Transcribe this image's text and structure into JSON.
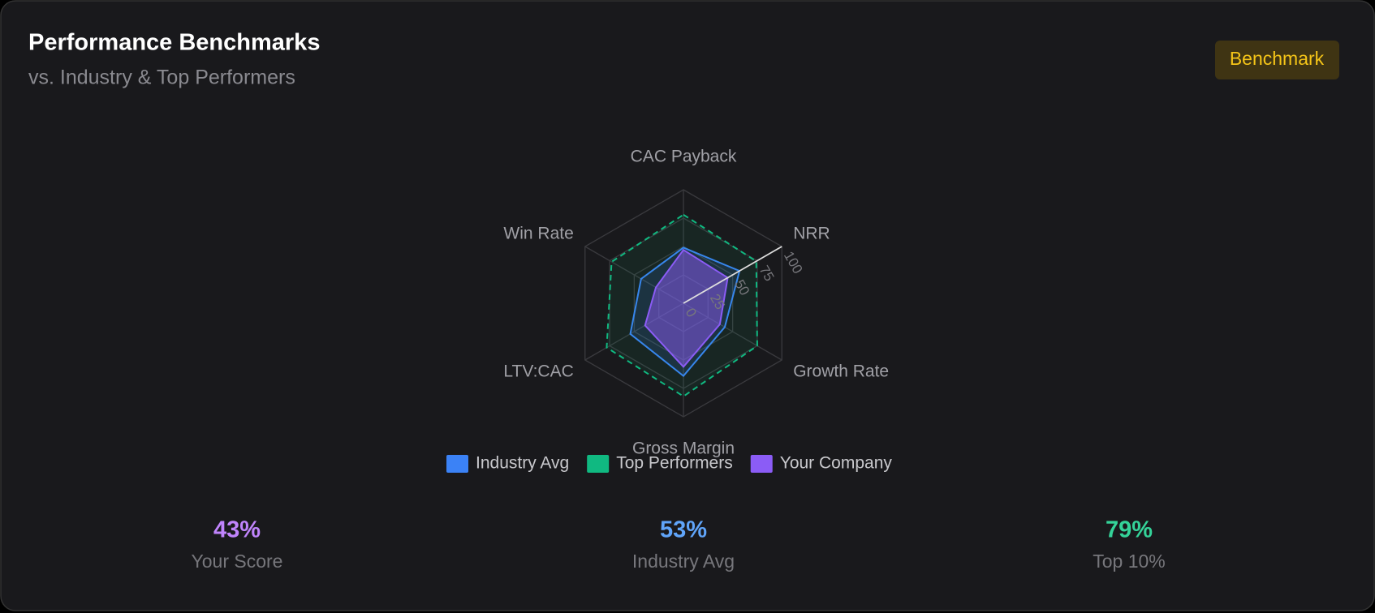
{
  "header": {
    "title": "Performance Benchmarks",
    "subtitle": "vs. Industry & Top Performers",
    "badge": "Benchmark"
  },
  "chart_data": {
    "type": "radar",
    "categories": [
      "CAC Payback",
      "NRR",
      "Growth Rate",
      "Gross Margin",
      "LTV:CAC",
      "Win Rate"
    ],
    "rlim": [
      0,
      100
    ],
    "rticks": [
      0,
      25,
      50,
      75,
      100
    ],
    "series": [
      {
        "name": "Industry Avg",
        "color": "#3b82f6",
        "values": [
          49,
          57,
          42,
          64,
          54,
          43
        ]
      },
      {
        "name": "Top Performers",
        "color": "#10b981",
        "dashed": true,
        "values": [
          78,
          74,
          75,
          82,
          78,
          73
        ]
      },
      {
        "name": "Your Company",
        "color": "#8b5cf6",
        "values": [
          47,
          45,
          37,
          56,
          39,
          28
        ]
      }
    ]
  },
  "stats": [
    {
      "value": "43%",
      "label": "Your Score",
      "color": "#c084fc"
    },
    {
      "value": "53%",
      "label": "Industry Avg",
      "color": "#60a5fa"
    },
    {
      "value": "79%",
      "label": "Top 10%",
      "color": "#34d399"
    }
  ]
}
